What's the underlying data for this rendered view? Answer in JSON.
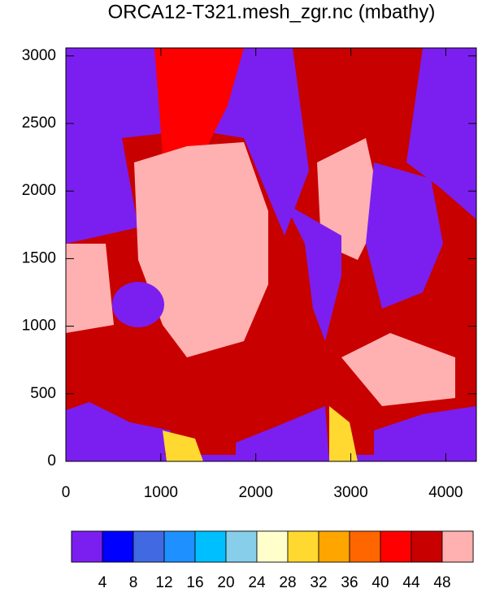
{
  "chart_data": {
    "type": "raster-map",
    "title": "ORCA12-T321.mesh_zgr.nc (mbathy)",
    "xlim": [
      0,
      4322
    ],
    "ylim": [
      0,
      3059
    ],
    "xticks": [
      0,
      1000,
      2000,
      3000,
      4000
    ],
    "yticks": [
      0,
      500,
      1000,
      1500,
      2000,
      2500,
      3000
    ],
    "colorbar": {
      "colors": [
        "#7b1ff0",
        "#0000ff",
        "#4169e1",
        "#1e90ff",
        "#00bfff",
        "#87ceeb",
        "#ffffcc",
        "#ffd92f",
        "#ffa500",
        "#ff6600",
        "#ff0000",
        "#c80000",
        "#ffb0b0"
      ],
      "levels": [
        4,
        8,
        12,
        16,
        20,
        24,
        28,
        32,
        36,
        40,
        44,
        48
      ]
    }
  }
}
